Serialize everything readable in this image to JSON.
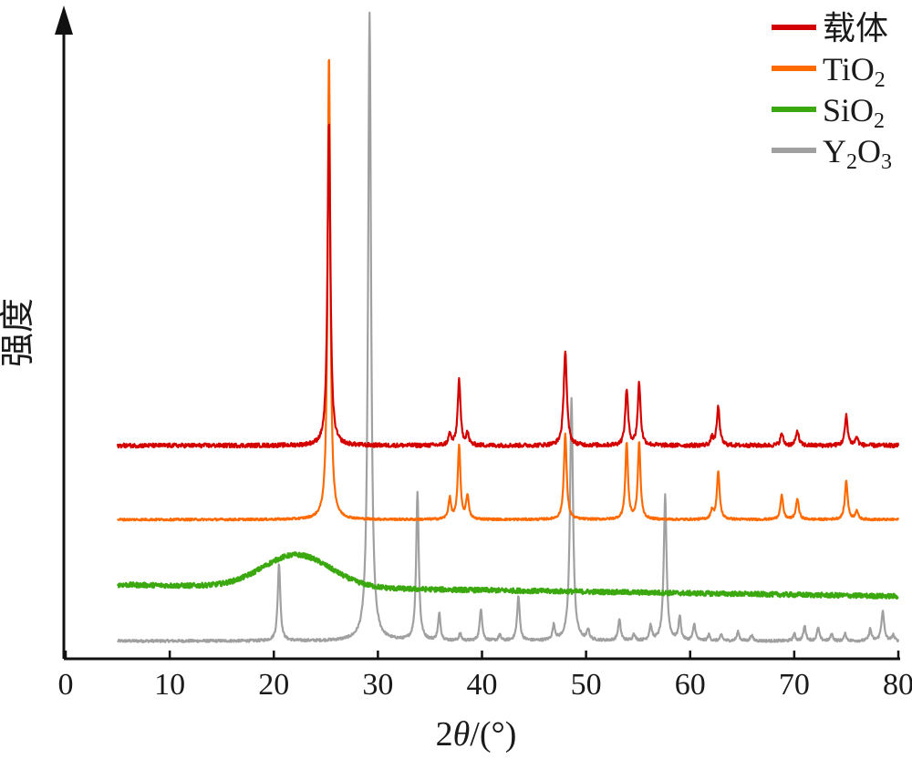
{
  "chart_data": {
    "type": "line",
    "title": "",
    "xlabel_prefix": "2",
    "xlabel_symbol": "θ",
    "xlabel_suffix": "/(°)",
    "ylabel": "强度",
    "xlim": [
      0,
      80
    ],
    "x_ticks": [
      0,
      10,
      20,
      30,
      40,
      50,
      60,
      70,
      80
    ],
    "y_ticks_shown": false,
    "y_scale": "arbitrary units, vertically offset traces",
    "grid": false,
    "legend_position": "top-right",
    "x_range_measured": [
      5,
      80
    ],
    "series": [
      {
        "name": "载体",
        "name_base": "载体",
        "name_sub": "",
        "name_tail": "",
        "color": "#d40000",
        "baseline": 0.34,
        "noise": 0.0035,
        "peaks": [
          {
            "x": 25.3,
            "h": 0.55,
            "w": 0.16
          },
          {
            "x": 36.9,
            "h": 0.018,
            "w": 0.15
          },
          {
            "x": 37.8,
            "h": 0.11,
            "w": 0.16
          },
          {
            "x": 38.6,
            "h": 0.02,
            "w": 0.15
          },
          {
            "x": 48.0,
            "h": 0.16,
            "w": 0.18
          },
          {
            "x": 53.9,
            "h": 0.095,
            "w": 0.16
          },
          {
            "x": 55.1,
            "h": 0.105,
            "w": 0.16
          },
          {
            "x": 62.1,
            "h": 0.012,
            "w": 0.15
          },
          {
            "x": 62.7,
            "h": 0.065,
            "w": 0.16
          },
          {
            "x": 68.8,
            "h": 0.02,
            "w": 0.16
          },
          {
            "x": 70.3,
            "h": 0.025,
            "w": 0.16
          },
          {
            "x": 75.0,
            "h": 0.05,
            "w": 0.16
          },
          {
            "x": 76.0,
            "h": 0.014,
            "w": 0.15
          }
        ]
      },
      {
        "name": "TiO2",
        "name_base": "TiO",
        "name_sub": "2",
        "name_tail": "",
        "color": "#ff6a00",
        "baseline": 0.215,
        "noise": 0.0018,
        "peaks": [
          {
            "x": 25.3,
            "h": 0.79,
            "w": 0.15
          },
          {
            "x": 36.9,
            "h": 0.035,
            "w": 0.15
          },
          {
            "x": 37.8,
            "h": 0.125,
            "w": 0.15
          },
          {
            "x": 38.6,
            "h": 0.04,
            "w": 0.15
          },
          {
            "x": 48.0,
            "h": 0.145,
            "w": 0.16
          },
          {
            "x": 53.9,
            "h": 0.13,
            "w": 0.15
          },
          {
            "x": 55.1,
            "h": 0.13,
            "w": 0.15
          },
          {
            "x": 62.1,
            "h": 0.015,
            "w": 0.15
          },
          {
            "x": 62.7,
            "h": 0.08,
            "w": 0.16
          },
          {
            "x": 68.8,
            "h": 0.04,
            "w": 0.16
          },
          {
            "x": 70.3,
            "h": 0.035,
            "w": 0.16
          },
          {
            "x": 75.0,
            "h": 0.065,
            "w": 0.16
          },
          {
            "x": 76.0,
            "h": 0.015,
            "w": 0.15
          }
        ]
      },
      {
        "name": "SiO2",
        "name_base": "SiO",
        "name_sub": "2",
        "name_tail": "",
        "color": "#3aa80e",
        "baseline": 0.105,
        "noise": 0.004,
        "slope": -0.00026,
        "hump": {
          "x": 22.2,
          "h": 0.055,
          "w": 4.6
        }
      },
      {
        "name": "Y2O3",
        "name_base": "Y",
        "name_sub": "2",
        "name_tail": "O",
        "name_sub2": "3",
        "color": "#a0a0a0",
        "baseline": 0.01,
        "noise": 0.0022,
        "peaks": [
          {
            "x": 20.5,
            "h": 0.13,
            "w": 0.15
          },
          {
            "x": 29.2,
            "h": 1.06,
            "w": 0.17
          },
          {
            "x": 33.8,
            "h": 0.25,
            "w": 0.15
          },
          {
            "x": 35.9,
            "h": 0.045,
            "w": 0.14
          },
          {
            "x": 37.9,
            "h": 0.012,
            "w": 0.13
          },
          {
            "x": 39.9,
            "h": 0.055,
            "w": 0.14
          },
          {
            "x": 41.7,
            "h": 0.01,
            "w": 0.13
          },
          {
            "x": 43.5,
            "h": 0.075,
            "w": 0.15
          },
          {
            "x": 46.9,
            "h": 0.025,
            "w": 0.14
          },
          {
            "x": 48.6,
            "h": 0.41,
            "w": 0.17
          },
          {
            "x": 50.2,
            "h": 0.018,
            "w": 0.13
          },
          {
            "x": 53.2,
            "h": 0.035,
            "w": 0.15
          },
          {
            "x": 54.6,
            "h": 0.012,
            "w": 0.13
          },
          {
            "x": 56.2,
            "h": 0.025,
            "w": 0.14
          },
          {
            "x": 57.6,
            "h": 0.245,
            "w": 0.16
          },
          {
            "x": 59.0,
            "h": 0.04,
            "w": 0.14
          },
          {
            "x": 60.4,
            "h": 0.028,
            "w": 0.14
          },
          {
            "x": 61.8,
            "h": 0.01,
            "w": 0.13
          },
          {
            "x": 63.0,
            "h": 0.01,
            "w": 0.13
          },
          {
            "x": 64.6,
            "h": 0.015,
            "w": 0.14
          },
          {
            "x": 65.9,
            "h": 0.01,
            "w": 0.13
          },
          {
            "x": 70.0,
            "h": 0.012,
            "w": 0.13
          },
          {
            "x": 71.0,
            "h": 0.025,
            "w": 0.14
          },
          {
            "x": 72.3,
            "h": 0.022,
            "w": 0.14
          },
          {
            "x": 73.6,
            "h": 0.012,
            "w": 0.13
          },
          {
            "x": 74.9,
            "h": 0.012,
            "w": 0.13
          },
          {
            "x": 77.3,
            "h": 0.02,
            "w": 0.14
          },
          {
            "x": 78.5,
            "h": 0.05,
            "w": 0.16
          },
          {
            "x": 79.5,
            "h": 0.01,
            "w": 0.13
          }
        ]
      }
    ]
  }
}
